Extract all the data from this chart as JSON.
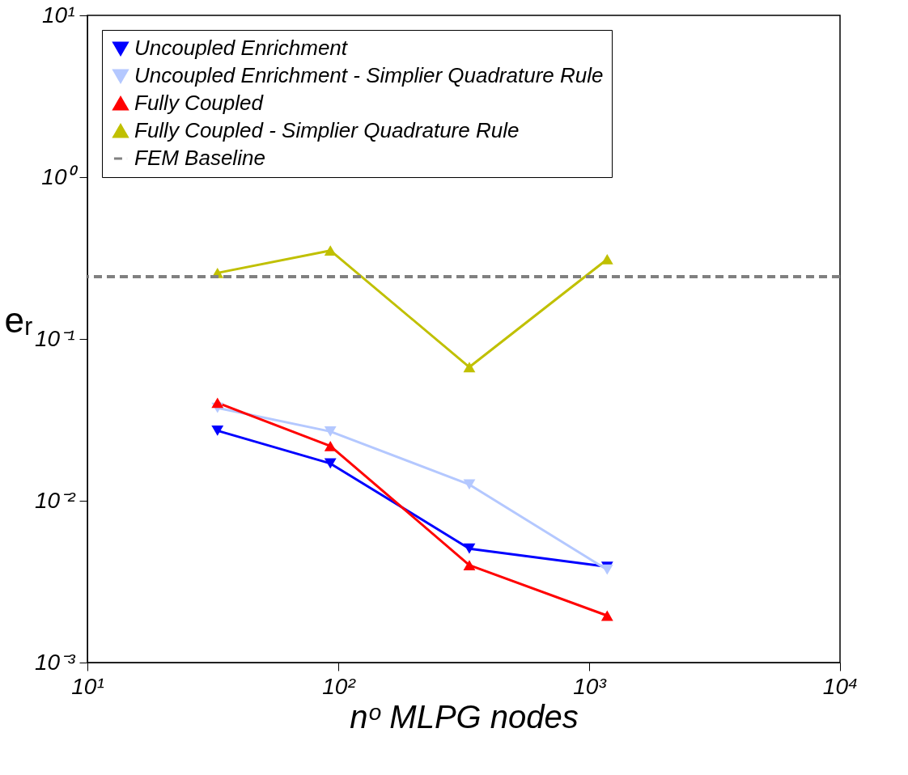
{
  "chart_data": {
    "type": "line",
    "xlabel": "nᵒ MLPG nodes",
    "ylabel": "eᵣ",
    "log": "xy",
    "xlim": [
      10,
      10000
    ],
    "xticks": [
      {
        "value": 10,
        "label": "10¹"
      },
      {
        "value": 100,
        "label": "10²"
      },
      {
        "value": 1000,
        "label": "10³"
      },
      {
        "value": 10000,
        "label": "10⁴"
      }
    ],
    "ylim": [
      0.001,
      10
    ],
    "yticks": [
      {
        "value": 0.001,
        "label": "10⁻³"
      },
      {
        "value": 0.01,
        "label": "10⁻²"
      },
      {
        "value": 0.1,
        "label": "10⁻¹"
      },
      {
        "value": 1,
        "label": "10⁰"
      },
      {
        "value": 10,
        "label": "10¹"
      }
    ],
    "x": [
      33,
      93,
      333,
      1180
    ],
    "series": [
      {
        "name": "Uncoupled Enrichment",
        "color": "#0000ff",
        "marker": "triangle-down",
        "values": [
          0.0271,
          0.017,
          0.00506,
          0.00391
        ]
      },
      {
        "name": "Uncoupled Enrichment - Simplier Quadrature Rule",
        "color": "#b4c8ff",
        "marker": "triangle-down",
        "values": [
          0.0375,
          0.0268,
          0.0126,
          0.00375
        ]
      },
      {
        "name": "Fully Coupled",
        "color": "#ff0000",
        "marker": "triangle",
        "values": [
          0.0403,
          0.0218,
          0.004,
          0.00195
        ]
      },
      {
        "name": "Fully Coupled - Simplier Quadrature Rule",
        "color": "#c0c000",
        "marker": "triangle",
        "values": [
          0.256,
          0.352,
          0.067,
          0.311
        ]
      }
    ],
    "ref_lines": [
      {
        "axis": "y",
        "value": 0.243,
        "label": "FEM Baseline",
        "color": "#808080",
        "line_style": "dashed"
      }
    ],
    "legend": "top",
    "grid": false
  }
}
